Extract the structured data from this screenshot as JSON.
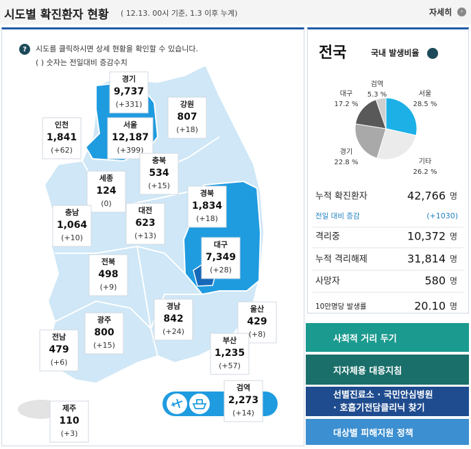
{
  "header": {
    "title": "시도별 확진환자 현황",
    "subtitle": "( 12.13. 00시 기준, 1.3 이후 누계)",
    "more": "자세히"
  },
  "map": {
    "notes": [
      "시도를 클릭하시면 상세 현황을 확인할 수 있습니다.",
      "( ) 숫자는 전일대비 증감수치"
    ],
    "regions": [
      {
        "name": "경기",
        "total": "9,737",
        "change": "(+331)"
      },
      {
        "name": "인천",
        "total": "1,841",
        "change": "(+62)"
      },
      {
        "name": "서울",
        "total": "12,187",
        "change": "(+399)"
      },
      {
        "name": "강원",
        "total": "807",
        "change": "(+18)"
      },
      {
        "name": "충북",
        "total": "534",
        "change": "(+15)"
      },
      {
        "name": "세종",
        "total": "124",
        "change": "(0)"
      },
      {
        "name": "충남",
        "total": "1,064",
        "change": "(+10)"
      },
      {
        "name": "대전",
        "total": "623",
        "change": "(+13)"
      },
      {
        "name": "경북",
        "total": "1,834",
        "change": "(+18)"
      },
      {
        "name": "대구",
        "total": "7,349",
        "change": "(+28)"
      },
      {
        "name": "전북",
        "total": "498",
        "change": "(+9)"
      },
      {
        "name": "경남",
        "total": "842",
        "change": "(+24)"
      },
      {
        "name": "울산",
        "total": "429",
        "change": "(+8)"
      },
      {
        "name": "광주",
        "total": "800",
        "change": "(+15)"
      },
      {
        "name": "부산",
        "total": "1,235",
        "change": "(+57)"
      },
      {
        "name": "전남",
        "total": "479",
        "change": "(+6)"
      },
      {
        "name": "제주",
        "total": "110",
        "change": "(+3)"
      },
      {
        "name": "검역",
        "total": "2,273",
        "change": "(+14)"
      }
    ]
  },
  "summary": {
    "title": "전국",
    "ratio_title": "국내 발생비율",
    "chart_data": {
      "type": "pie",
      "categories": [
        "서울",
        "기타",
        "경기",
        "대구",
        "검역"
      ],
      "values": [
        28.5,
        26.2,
        22.8,
        17.2,
        5.3
      ],
      "value_labels": [
        "28.5 %",
        "26.2 %",
        "22.8 %",
        "17.2 %",
        "5.3 %"
      ],
      "colors": [
        "#1cb0e6",
        "#ebebeb",
        "#a9a9a9",
        "#595959",
        "#cfcfcf"
      ]
    },
    "stats": [
      {
        "label": "누적 확진환자",
        "value": "42,766",
        "unit": "명"
      },
      {
        "label": "전일 대비 증감",
        "value": "(+1030)"
      },
      {
        "label": "격리중",
        "value": "10,372",
        "unit": "명"
      },
      {
        "label": "누적 격리해제",
        "value": "31,814",
        "unit": "명"
      },
      {
        "label": "사망자",
        "value": "580",
        "unit": "명"
      },
      {
        "label": "10만명당 발생률",
        "value": "20.10",
        "unit": "명"
      }
    ]
  },
  "links": [
    "사회적 거리 두기",
    "지자체용 대응지침",
    "선별진료소 · 국민안심병원",
    "· 호흡기전담클리닉 찾기",
    "대상별 피해지원 정책"
  ]
}
